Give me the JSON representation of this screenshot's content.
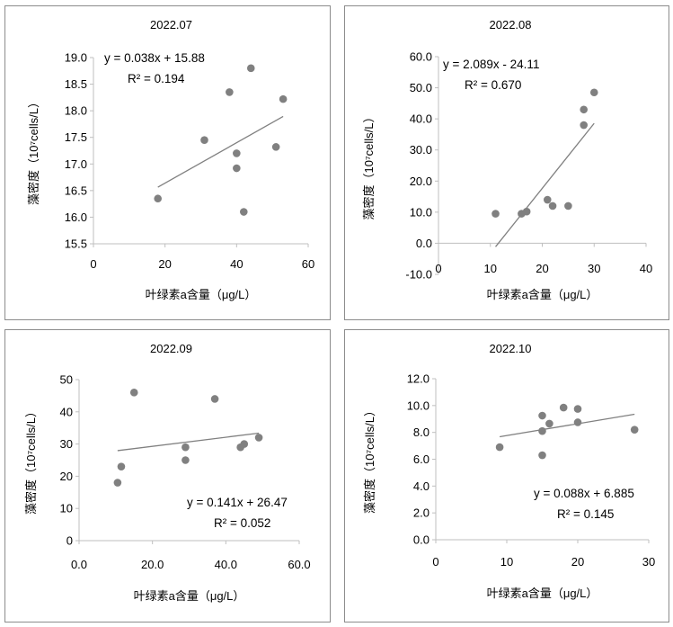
{
  "chart_data": [
    {
      "type": "scatter",
      "title": "2022.07",
      "xlabel": "叶绿素a含量（μg/L）",
      "ylabel": "藻密度（10⁷cells/L）",
      "xlim": [
        0,
        60
      ],
      "ylim": [
        15.5,
        19.0
      ],
      "xticks": [
        0,
        20,
        40,
        60
      ],
      "yticks": [
        15.5,
        16.0,
        16.5,
        17.0,
        17.5,
        18.0,
        18.5,
        19.0
      ],
      "x_tick_labels": [
        "0",
        "20",
        "40",
        "60"
      ],
      "y_tick_labels": [
        "15.5",
        "16.0",
        "16.5",
        "17.0",
        "17.5",
        "18.0",
        "18.5",
        "19.0"
      ],
      "points": [
        [
          18,
          16.35
        ],
        [
          31,
          17.45
        ],
        [
          38,
          18.35
        ],
        [
          40,
          17.2
        ],
        [
          40,
          16.92
        ],
        [
          42,
          16.1
        ],
        [
          44,
          18.8
        ],
        [
          51,
          17.32
        ],
        [
          53,
          18.22
        ]
      ],
      "trend": {
        "slope": 0.038,
        "intercept": 15.88,
        "x_range": [
          18,
          53
        ]
      },
      "equation": "y = 0.038x + 15.88",
      "r2": "R² = 0.194",
      "legend_position": "top-left"
    },
    {
      "type": "scatter",
      "title": "2022.08",
      "xlabel": "叶绿素a含量（μg/L）",
      "ylabel": "藻密度（10⁷cells/L）",
      "xlim": [
        0,
        40
      ],
      "ylim": [
        -10.0,
        60.0
      ],
      "xticks": [
        0,
        10,
        20,
        30,
        40
      ],
      "yticks": [
        -10.0,
        0.0,
        10.0,
        20.0,
        30.0,
        40.0,
        50.0,
        60.0
      ],
      "x_tick_labels": [
        "0",
        "10",
        "20",
        "30",
        "40"
      ],
      "y_tick_labels": [
        "-10.0",
        "0.0",
        "10.0",
        "20.0",
        "30.0",
        "40.0",
        "50.0",
        "60.0"
      ],
      "points": [
        [
          11,
          9.5
        ],
        [
          16,
          9.5
        ],
        [
          17,
          10.2
        ],
        [
          21,
          14
        ],
        [
          22,
          12
        ],
        [
          25,
          12
        ],
        [
          28,
          43
        ],
        [
          28,
          38
        ],
        [
          30,
          48.5
        ]
      ],
      "trend": {
        "slope": 2.089,
        "intercept": -24.11,
        "x_range": [
          11,
          30
        ]
      },
      "equation": "y = 2.089x - 24.11",
      "r2": "R² = 0.670",
      "legend_position": "top-left"
    },
    {
      "type": "scatter",
      "title": "2022.09",
      "xlabel": "叶绿素a含量（μg/L）",
      "ylabel": "藻密度（10⁷cells/L）",
      "xlim": [
        0,
        60
      ],
      "ylim": [
        0,
        50
      ],
      "xticks": [
        0,
        20,
        40,
        60
      ],
      "yticks": [
        0,
        10,
        20,
        30,
        40,
        50
      ],
      "x_tick_labels": [
        "0.0",
        "20.0",
        "40.0",
        "60.0"
      ],
      "y_tick_labels": [
        "0",
        "10",
        "20",
        "30",
        "40",
        "50"
      ],
      "points": [
        [
          10.5,
          18
        ],
        [
          11.5,
          23
        ],
        [
          15,
          46
        ],
        [
          29,
          29
        ],
        [
          29,
          25
        ],
        [
          37,
          44
        ],
        [
          44,
          29
        ],
        [
          45,
          30
        ],
        [
          49,
          32
        ]
      ],
      "trend": {
        "slope": 0.141,
        "intercept": 26.47,
        "x_range": [
          10.5,
          49
        ]
      },
      "equation": "y = 0.141x + 26.47",
      "r2": "R² = 0.052",
      "legend_position": "bottom-right"
    },
    {
      "type": "scatter",
      "title": "2022.10",
      "xlabel": "叶绿素a含量（μg/L）",
      "ylabel": "藻密度（10⁷cells/L）",
      "xlim": [
        0,
        30
      ],
      "ylim": [
        0.0,
        12.0
      ],
      "xticks": [
        0,
        10,
        20,
        30
      ],
      "yticks": [
        0.0,
        2.0,
        4.0,
        6.0,
        8.0,
        10.0,
        12.0
      ],
      "x_tick_labels": [
        "0",
        "10",
        "20",
        "30"
      ],
      "y_tick_labels": [
        "0.0",
        "2.0",
        "4.0",
        "6.0",
        "8.0",
        "10.0",
        "12.0"
      ],
      "points": [
        [
          9,
          6.9
        ],
        [
          15,
          9.25
        ],
        [
          15,
          8.1
        ],
        [
          15,
          6.3
        ],
        [
          16,
          8.65
        ],
        [
          18,
          9.85
        ],
        [
          20,
          9.75
        ],
        [
          20,
          8.75
        ],
        [
          28,
          8.2
        ]
      ],
      "trend": {
        "slope": 0.088,
        "intercept": 6.885,
        "x_range": [
          9,
          28
        ]
      },
      "equation": "y = 0.088x + 6.885",
      "r2": "R² = 0.145",
      "legend_position": "center-right"
    }
  ],
  "colors": {
    "points": "#808080",
    "trendline": "#808080",
    "axis": "#bfbfbf",
    "frame": "#8c8c8c"
  }
}
